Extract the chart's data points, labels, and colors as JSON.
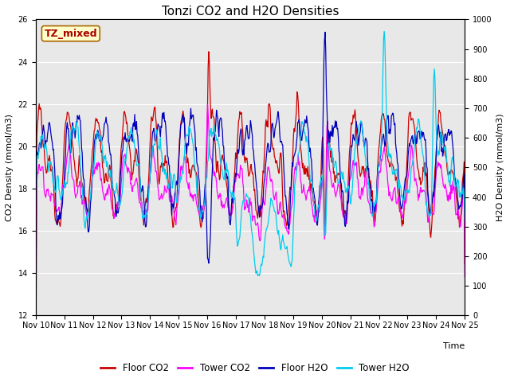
{
  "title": "Tonzi CO2 and H2O Densities",
  "xlabel": "Time",
  "ylabel_left": "CO2 Density (mmol/m3)",
  "ylabel_right": "H2O Density (mmol/m3)",
  "ylim_left": [
    12,
    26
  ],
  "ylim_right": [
    0,
    1000
  ],
  "yticks_left": [
    12,
    14,
    16,
    18,
    20,
    22,
    24,
    26
  ],
  "yticks_right": [
    0,
    100,
    200,
    300,
    400,
    500,
    600,
    700,
    800,
    900,
    1000
  ],
  "xtick_labels": [
    "Nov 10",
    "Nov 11",
    "Nov 12",
    "Nov 13",
    "Nov 14",
    "Nov 15",
    "Nov 16",
    "Nov 17",
    "Nov 18",
    "Nov 19",
    "Nov 20",
    "Nov 21",
    "Nov 22",
    "Nov 23",
    "Nov 24",
    "Nov 25"
  ],
  "annotation_text": "TZ_mixed",
  "annotation_bg": "#ffffcc",
  "annotation_edge": "#cc0000",
  "line_colors": {
    "floor_co2": "#cc0000",
    "tower_co2": "#ff00ff",
    "floor_h2o": "#0000bb",
    "tower_h2o": "#00ccee"
  },
  "legend_labels": [
    "Floor CO2",
    "Tower CO2",
    "Floor H2O",
    "Tower H2O"
  ],
  "plot_bg": "#e8e8e8",
  "figsize": [
    6.4,
    4.8
  ],
  "dpi": 100,
  "title_fontsize": 11,
  "axis_fontsize": 8,
  "tick_fontsize": 7,
  "legend_fontsize": 8.5
}
